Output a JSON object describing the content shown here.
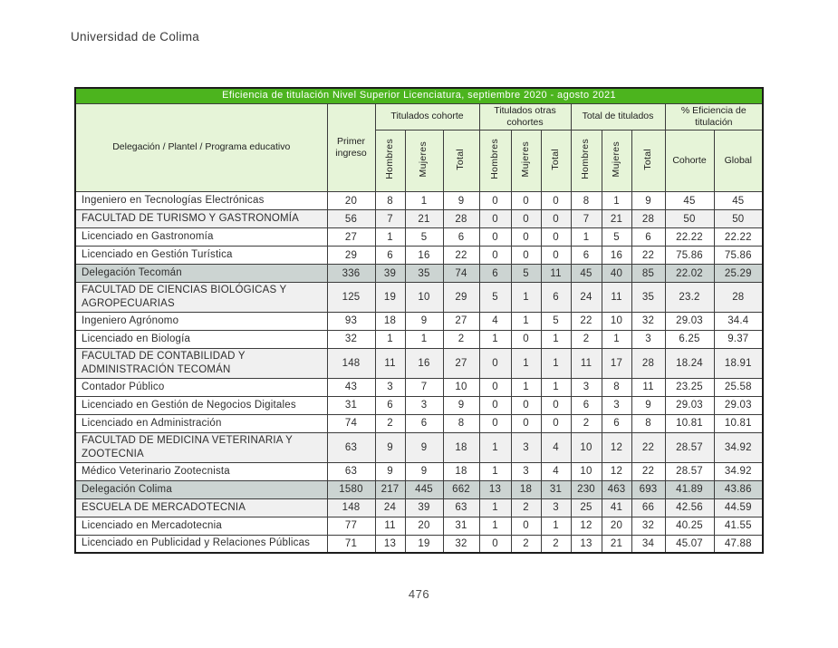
{
  "page": {
    "org_name": "Universidad de Colima",
    "page_number": "476"
  },
  "colors": {
    "title_green": "#4cb41e",
    "header_green": "#e6f4d8",
    "plantel_gray": "#f0f0f0",
    "delegacion_gray": "#ccd4d2"
  },
  "table": {
    "title": "Eficiencia de titulación Nivel Superior Licenciatura, septiembre 2020 - agosto 2021",
    "name_header": "Delegación / Plantel / Programa educativo",
    "primer_ingreso_header": "Primer ingreso",
    "groups": [
      {
        "label": "Titulados cohorte",
        "cols": [
          "Hombres",
          "Mujeres",
          "Total"
        ]
      },
      {
        "label": "Titulados otras cohortes",
        "cols": [
          "Hombres",
          "Mujeres",
          "Total"
        ]
      },
      {
        "label": "Total de titulados",
        "cols": [
          "Hombres",
          "Mujeres",
          "Total"
        ]
      },
      {
        "label": "% Eficiencia de titulación",
        "cols": [
          "Cohorte",
          "Global"
        ]
      }
    ],
    "rows": [
      {
        "type": "program",
        "name": "Ingeniero en Tecnologías Electrónicas",
        "values": [
          "20",
          "8",
          "1",
          "9",
          "0",
          "0",
          "0",
          "8",
          "1",
          "9",
          "45",
          "45"
        ]
      },
      {
        "type": "plantel",
        "name": "FACULTAD DE TURISMO Y GASTRONOMÍA",
        "values": [
          "56",
          "7",
          "21",
          "28",
          "0",
          "0",
          "0",
          "7",
          "21",
          "28",
          "50",
          "50"
        ]
      },
      {
        "type": "program",
        "name": "Licenciado en Gastronomía",
        "values": [
          "27",
          "1",
          "5",
          "6",
          "0",
          "0",
          "0",
          "1",
          "5",
          "6",
          "22.22",
          "22.22"
        ]
      },
      {
        "type": "program",
        "name": "Licenciado en Gestión Turística",
        "values": [
          "29",
          "6",
          "16",
          "22",
          "0",
          "0",
          "0",
          "6",
          "16",
          "22",
          "75.86",
          "75.86"
        ]
      },
      {
        "type": "delegacion",
        "name": "Delegación Tecomán",
        "values": [
          "336",
          "39",
          "35",
          "74",
          "6",
          "5",
          "11",
          "45",
          "40",
          "85",
          "22.02",
          "25.29"
        ]
      },
      {
        "type": "plantel",
        "name": "FACULTAD DE CIENCIAS BIOLÓGICAS Y AGROPECUARIAS",
        "values": [
          "125",
          "19",
          "10",
          "29",
          "5",
          "1",
          "6",
          "24",
          "11",
          "35",
          "23.2",
          "28"
        ]
      },
      {
        "type": "program",
        "name": "Ingeniero Agrónomo",
        "values": [
          "93",
          "18",
          "9",
          "27",
          "4",
          "1",
          "5",
          "22",
          "10",
          "32",
          "29.03",
          "34.4"
        ]
      },
      {
        "type": "program",
        "name": "Licenciado en Biología",
        "values": [
          "32",
          "1",
          "1",
          "2",
          "1",
          "0",
          "1",
          "2",
          "1",
          "3",
          "6.25",
          "9.37"
        ]
      },
      {
        "type": "plantel",
        "name": "FACULTAD DE CONTABILIDAD Y ADMINISTRACIÓN TECOMÁN",
        "values": [
          "148",
          "11",
          "16",
          "27",
          "0",
          "1",
          "1",
          "11",
          "17",
          "28",
          "18.24",
          "18.91"
        ]
      },
      {
        "type": "program",
        "name": "Contador Público",
        "values": [
          "43",
          "3",
          "7",
          "10",
          "0",
          "1",
          "1",
          "3",
          "8",
          "11",
          "23.25",
          "25.58"
        ]
      },
      {
        "type": "program",
        "name": "Licenciado en Gestión de Negocios Digitales",
        "values": [
          "31",
          "6",
          "3",
          "9",
          "0",
          "0",
          "0",
          "6",
          "3",
          "9",
          "29.03",
          "29.03"
        ]
      },
      {
        "type": "program",
        "name": "Licenciado en Administración",
        "values": [
          "74",
          "2",
          "6",
          "8",
          "0",
          "0",
          "0",
          "2",
          "6",
          "8",
          "10.81",
          "10.81"
        ]
      },
      {
        "type": "plantel",
        "name": "FACULTAD DE MEDICINA VETERINARIA Y ZOOTECNIA",
        "values": [
          "63",
          "9",
          "9",
          "18",
          "1",
          "3",
          "4",
          "10",
          "12",
          "22",
          "28.57",
          "34.92"
        ]
      },
      {
        "type": "program",
        "name": "Médico Veterinario Zootecnista",
        "values": [
          "63",
          "9",
          "9",
          "18",
          "1",
          "3",
          "4",
          "10",
          "12",
          "22",
          "28.57",
          "34.92"
        ]
      },
      {
        "type": "delegacion",
        "name": "Delegación Colima",
        "values": [
          "1580",
          "217",
          "445",
          "662",
          "13",
          "18",
          "31",
          "230",
          "463",
          "693",
          "41.89",
          "43.86"
        ]
      },
      {
        "type": "plantel",
        "name": "ESCUELA DE MERCADOTECNIA",
        "values": [
          "148",
          "24",
          "39",
          "63",
          "1",
          "2",
          "3",
          "25",
          "41",
          "66",
          "42.56",
          "44.59"
        ]
      },
      {
        "type": "program",
        "name": "Licenciado en Mercadotecnia",
        "values": [
          "77",
          "11",
          "20",
          "31",
          "1",
          "0",
          "1",
          "12",
          "20",
          "32",
          "40.25",
          "41.55"
        ]
      },
      {
        "type": "program",
        "name": "Licenciado en Publicidad y Relaciones Públicas",
        "values": [
          "71",
          "13",
          "19",
          "32",
          "0",
          "2",
          "2",
          "13",
          "21",
          "34",
          "45.07",
          "47.88"
        ]
      }
    ]
  }
}
